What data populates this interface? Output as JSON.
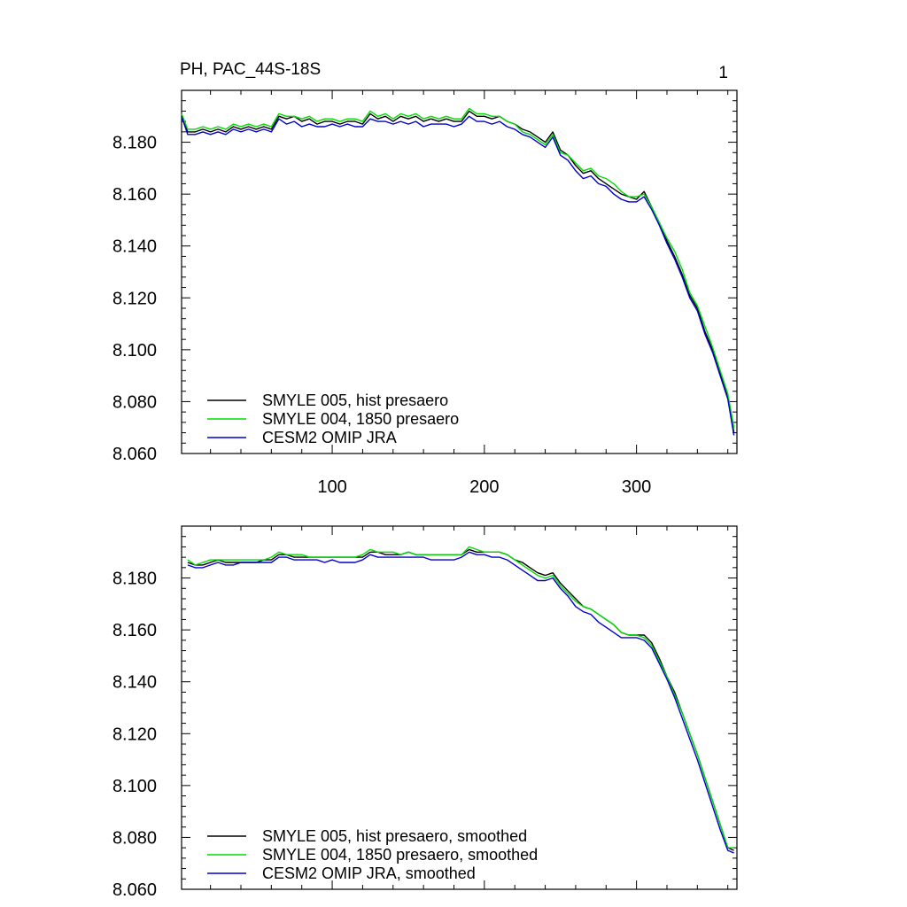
{
  "figure": {
    "title_left": "PH, PAC_44S-18S",
    "title_right": "1"
  },
  "chart_data": [
    {
      "type": "line",
      "title": "PH, PAC_44S-18S",
      "xlim": [
        1,
        366
      ],
      "ylim": [
        8.06,
        8.2
      ],
      "xticks": [
        100,
        200,
        300
      ],
      "yticks": [
        "8.060",
        "8.080",
        "8.100",
        "8.120",
        "8.140",
        "8.160",
        "8.180"
      ],
      "xtick_labels_shown": true,
      "legend_position": "bottom-left",
      "series": [
        {
          "name": "SMYLE 005, hist presaero",
          "color": "#000000",
          "x": [
            1,
            5,
            10,
            15,
            20,
            25,
            30,
            35,
            40,
            45,
            50,
            55,
            60,
            65,
            70,
            75,
            80,
            85,
            90,
            95,
            100,
            105,
            110,
            115,
            120,
            125,
            130,
            135,
            140,
            145,
            150,
            155,
            160,
            165,
            170,
            175,
            180,
            185,
            190,
            195,
            200,
            205,
            210,
            215,
            220,
            225,
            230,
            235,
            240,
            245,
            250,
            255,
            260,
            265,
            270,
            275,
            280,
            285,
            290,
            295,
            300,
            305,
            310,
            315,
            320,
            325,
            330,
            335,
            340,
            345,
            350,
            355,
            360,
            364
          ],
          "y": [
            8.19,
            8.184,
            8.184,
            8.185,
            8.184,
            8.185,
            8.184,
            8.186,
            8.185,
            8.186,
            8.185,
            8.186,
            8.185,
            8.19,
            8.189,
            8.19,
            8.188,
            8.189,
            8.187,
            8.188,
            8.188,
            8.187,
            8.188,
            8.188,
            8.187,
            8.191,
            8.189,
            8.19,
            8.188,
            8.19,
            8.189,
            8.19,
            8.188,
            8.189,
            8.188,
            8.189,
            8.188,
            8.188,
            8.192,
            8.19,
            8.19,
            8.189,
            8.19,
            8.188,
            8.187,
            8.185,
            8.184,
            8.182,
            8.18,
            8.184,
            8.177,
            8.175,
            8.171,
            8.168,
            8.169,
            8.166,
            8.164,
            8.162,
            8.16,
            8.159,
            8.158,
            8.161,
            8.155,
            8.149,
            8.142,
            8.136,
            8.129,
            8.121,
            8.116,
            8.107,
            8.1,
            8.091,
            8.082,
            8.068
          ]
        },
        {
          "name": "SMYLE 004, 1850 presaero",
          "color": "#00dd00",
          "x": [
            1,
            5,
            10,
            15,
            20,
            25,
            30,
            35,
            40,
            45,
            50,
            55,
            60,
            65,
            70,
            75,
            80,
            85,
            90,
            95,
            100,
            105,
            110,
            115,
            120,
            125,
            130,
            135,
            140,
            145,
            150,
            155,
            160,
            165,
            170,
            175,
            180,
            185,
            190,
            195,
            200,
            205,
            210,
            215,
            220,
            225,
            230,
            235,
            240,
            245,
            250,
            255,
            260,
            265,
            270,
            275,
            280,
            285,
            290,
            295,
            300,
            305,
            310,
            315,
            320,
            325,
            330,
            335,
            340,
            345,
            350,
            355,
            360,
            364
          ],
          "y": [
            8.191,
            8.185,
            8.185,
            8.186,
            8.185,
            8.186,
            8.185,
            8.187,
            8.186,
            8.187,
            8.186,
            8.187,
            8.186,
            8.191,
            8.19,
            8.19,
            8.189,
            8.19,
            8.188,
            8.189,
            8.189,
            8.188,
            8.189,
            8.189,
            8.188,
            8.192,
            8.19,
            8.191,
            8.189,
            8.191,
            8.19,
            8.191,
            8.189,
            8.19,
            8.189,
            8.19,
            8.189,
            8.189,
            8.193,
            8.191,
            8.191,
            8.19,
            8.19,
            8.188,
            8.187,
            8.184,
            8.183,
            8.181,
            8.179,
            8.183,
            8.176,
            8.175,
            8.172,
            8.169,
            8.17,
            8.167,
            8.166,
            8.164,
            8.161,
            8.159,
            8.159,
            8.16,
            8.155,
            8.149,
            8.143,
            8.138,
            8.131,
            8.122,
            8.117,
            8.109,
            8.101,
            8.092,
            8.083,
            8.07
          ]
        },
        {
          "name": "CESM2 OMIP JRA",
          "color": "#0000cc",
          "x": [
            1,
            5,
            10,
            15,
            20,
            25,
            30,
            35,
            40,
            45,
            50,
            55,
            60,
            65,
            70,
            75,
            80,
            85,
            90,
            95,
            100,
            105,
            110,
            115,
            120,
            125,
            130,
            135,
            140,
            145,
            150,
            155,
            160,
            165,
            170,
            175,
            180,
            185,
            190,
            195,
            200,
            205,
            210,
            215,
            220,
            225,
            230,
            235,
            240,
            245,
            250,
            255,
            260,
            265,
            270,
            275,
            280,
            285,
            290,
            295,
            300,
            305,
            310,
            315,
            320,
            325,
            330,
            335,
            340,
            345,
            350,
            355,
            360,
            364
          ],
          "y": [
            8.19,
            8.183,
            8.183,
            8.184,
            8.183,
            8.184,
            8.183,
            8.185,
            8.184,
            8.185,
            8.184,
            8.185,
            8.184,
            8.189,
            8.187,
            8.188,
            8.186,
            8.187,
            8.186,
            8.186,
            8.187,
            8.186,
            8.187,
            8.186,
            8.186,
            8.189,
            8.188,
            8.188,
            8.187,
            8.188,
            8.187,
            8.188,
            8.186,
            8.187,
            8.187,
            8.187,
            8.186,
            8.187,
            8.19,
            8.188,
            8.188,
            8.187,
            8.188,
            8.186,
            8.185,
            8.183,
            8.182,
            8.18,
            8.178,
            8.182,
            8.175,
            8.173,
            8.169,
            8.166,
            8.167,
            8.164,
            8.163,
            8.16,
            8.158,
            8.157,
            8.157,
            8.159,
            8.154,
            8.148,
            8.141,
            8.135,
            8.128,
            8.12,
            8.115,
            8.106,
            8.099,
            8.09,
            8.081,
            8.067
          ]
        }
      ]
    },
    {
      "type": "line",
      "title": "",
      "xlim": [
        1,
        366
      ],
      "ylim": [
        8.06,
        8.2
      ],
      "xticks": [
        100,
        200,
        300
      ],
      "yticks": [
        "8.060",
        "8.080",
        "8.100",
        "8.120",
        "8.140",
        "8.160",
        "8.180"
      ],
      "xtick_labels_shown": false,
      "legend_position": "bottom-left",
      "series": [
        {
          "name": "SMYLE 005, hist presaero, smoothed",
          "color": "#000000",
          "x": [
            5,
            10,
            15,
            20,
            25,
            30,
            35,
            40,
            45,
            50,
            55,
            60,
            65,
            70,
            75,
            80,
            85,
            90,
            95,
            100,
            105,
            110,
            115,
            120,
            125,
            130,
            135,
            140,
            145,
            150,
            155,
            160,
            165,
            170,
            175,
            180,
            185,
            190,
            195,
            200,
            205,
            210,
            215,
            220,
            225,
            230,
            235,
            240,
            245,
            250,
            255,
            260,
            265,
            270,
            275,
            280,
            285,
            290,
            295,
            300,
            305,
            310,
            315,
            320,
            325,
            330,
            335,
            340,
            345,
            350,
            355,
            360,
            364
          ],
          "y": [
            8.186,
            8.185,
            8.185,
            8.186,
            8.187,
            8.186,
            8.186,
            8.186,
            8.186,
            8.186,
            8.187,
            8.187,
            8.189,
            8.189,
            8.188,
            8.188,
            8.188,
            8.188,
            8.188,
            8.188,
            8.188,
            8.188,
            8.188,
            8.188,
            8.19,
            8.19,
            8.189,
            8.189,
            8.189,
            8.19,
            8.189,
            8.189,
            8.189,
            8.189,
            8.189,
            8.189,
            8.189,
            8.191,
            8.19,
            8.19,
            8.19,
            8.19,
            8.189,
            8.187,
            8.186,
            8.184,
            8.182,
            8.181,
            8.182,
            8.178,
            8.175,
            8.172,
            8.169,
            8.168,
            8.166,
            8.164,
            8.162,
            8.159,
            8.158,
            8.158,
            8.158,
            8.155,
            8.149,
            8.142,
            8.136,
            8.128,
            8.12,
            8.112,
            8.103,
            8.094,
            8.085,
            8.076,
            8.075
          ]
        },
        {
          "name": "SMYLE 004, 1850 presaero, smoothed",
          "color": "#00dd00",
          "x": [
            5,
            10,
            15,
            20,
            25,
            30,
            35,
            40,
            45,
            50,
            55,
            60,
            65,
            70,
            75,
            80,
            85,
            90,
            95,
            100,
            105,
            110,
            115,
            120,
            125,
            130,
            135,
            140,
            145,
            150,
            155,
            160,
            165,
            170,
            175,
            180,
            185,
            190,
            195,
            200,
            205,
            210,
            215,
            220,
            225,
            230,
            235,
            240,
            245,
            250,
            255,
            260,
            265,
            270,
            275,
            280,
            285,
            290,
            295,
            300,
            305,
            310,
            315,
            320,
            325,
            330,
            335,
            340,
            345,
            350,
            355,
            360,
            364
          ],
          "y": [
            8.187,
            8.185,
            8.186,
            8.187,
            8.187,
            8.187,
            8.187,
            8.187,
            8.187,
            8.187,
            8.187,
            8.188,
            8.19,
            8.189,
            8.189,
            8.189,
            8.188,
            8.188,
            8.188,
            8.188,
            8.188,
            8.188,
            8.188,
            8.189,
            8.191,
            8.19,
            8.19,
            8.19,
            8.189,
            8.19,
            8.189,
            8.189,
            8.189,
            8.189,
            8.189,
            8.189,
            8.189,
            8.192,
            8.191,
            8.19,
            8.19,
            8.19,
            8.189,
            8.187,
            8.185,
            8.183,
            8.181,
            8.18,
            8.181,
            8.177,
            8.174,
            8.171,
            8.169,
            8.168,
            8.166,
            8.164,
            8.162,
            8.159,
            8.158,
            8.158,
            8.157,
            8.154,
            8.148,
            8.142,
            8.135,
            8.128,
            8.12,
            8.112,
            8.103,
            8.094,
            8.085,
            8.076,
            8.076
          ]
        },
        {
          "name": "CESM2 OMIP JRA, smoothed",
          "color": "#0000cc",
          "x": [
            5,
            10,
            15,
            20,
            25,
            30,
            35,
            40,
            45,
            50,
            55,
            60,
            65,
            70,
            75,
            80,
            85,
            90,
            95,
            100,
            105,
            110,
            115,
            120,
            125,
            130,
            135,
            140,
            145,
            150,
            155,
            160,
            165,
            170,
            175,
            180,
            185,
            190,
            195,
            200,
            205,
            210,
            215,
            220,
            225,
            230,
            235,
            240,
            245,
            250,
            255,
            260,
            265,
            270,
            275,
            280,
            285,
            290,
            295,
            300,
            305,
            310,
            315,
            320,
            325,
            330,
            335,
            340,
            345,
            350,
            355,
            360,
            364
          ],
          "y": [
            8.185,
            8.184,
            8.184,
            8.185,
            8.186,
            8.185,
            8.185,
            8.186,
            8.186,
            8.186,
            8.186,
            8.186,
            8.188,
            8.188,
            8.187,
            8.187,
            8.187,
            8.187,
            8.186,
            8.187,
            8.186,
            8.186,
            8.186,
            8.187,
            8.189,
            8.188,
            8.188,
            8.188,
            8.188,
            8.188,
            8.188,
            8.188,
            8.187,
            8.187,
            8.187,
            8.187,
            8.188,
            8.19,
            8.189,
            8.189,
            8.188,
            8.188,
            8.187,
            8.185,
            8.183,
            8.181,
            8.179,
            8.179,
            8.18,
            8.176,
            8.173,
            8.169,
            8.167,
            8.166,
            8.163,
            8.161,
            8.159,
            8.157,
            8.157,
            8.157,
            8.156,
            8.153,
            8.147,
            8.141,
            8.134,
            8.126,
            8.118,
            8.11,
            8.101,
            8.092,
            8.083,
            8.075,
            8.074
          ]
        }
      ]
    }
  ]
}
